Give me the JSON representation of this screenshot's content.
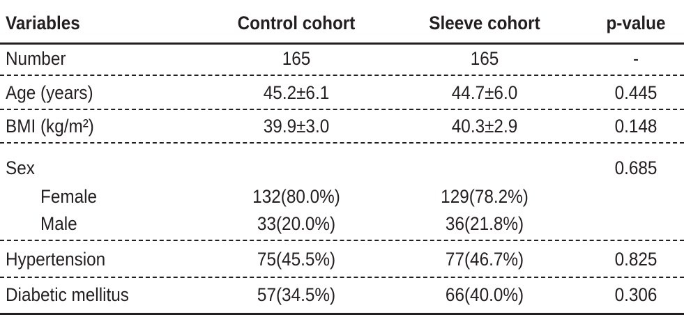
{
  "table": {
    "header": [
      "Variables",
      "Control cohort",
      "Sleeve cohort",
      "p-value"
    ],
    "rows": [
      [
        "Number",
        "165",
        "165",
        "-"
      ],
      [
        "Age (years)",
        "45.2±6.1",
        "44.7±6.0",
        "0.445"
      ],
      [
        "BMI (kg/m²)",
        "39.9±3.0",
        "40.3±2.9",
        "0.148"
      ],
      [
        "Sex",
        null,
        null,
        "0.685"
      ],
      [
        "Female",
        "132(80.0%)",
        "129(78.2%)",
        null
      ],
      [
        "Male",
        "33(20.0%)",
        "36(21.8%)",
        null
      ],
      [
        "Hypertension",
        "75(45.5%)",
        "77(46.7%)",
        "0.825"
      ],
      [
        "Diabetic mellitus",
        "57(34.5%)",
        "66(40.0%)",
        "0.306"
      ]
    ]
  }
}
